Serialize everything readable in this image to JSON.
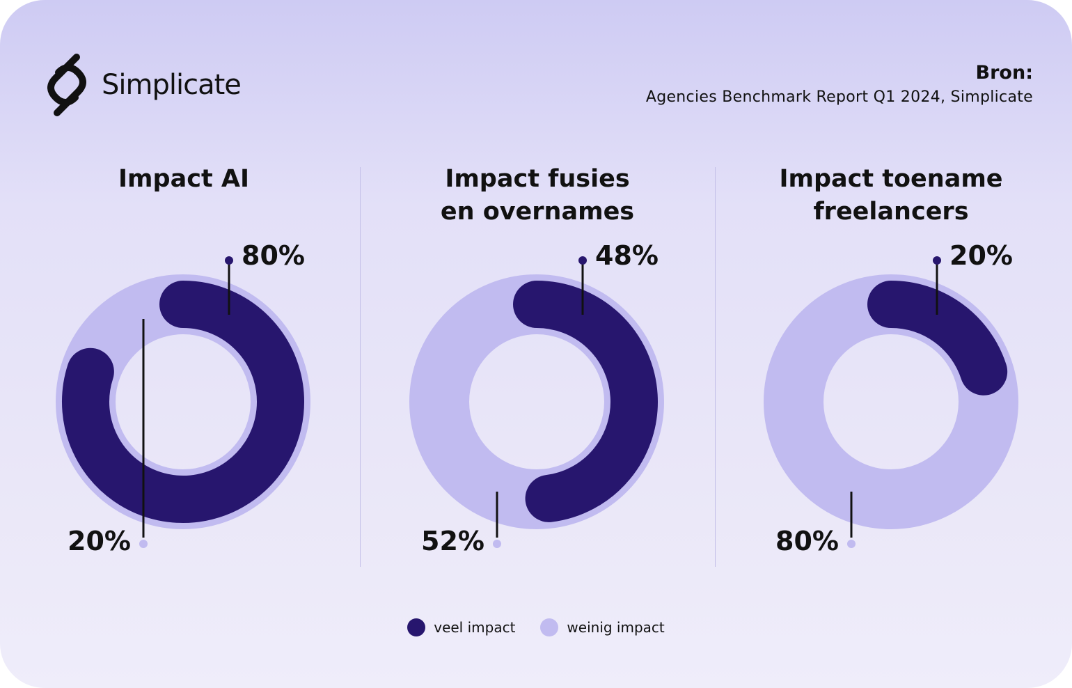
{
  "brand": {
    "name": "Simplicate"
  },
  "source": {
    "label": "Bron:",
    "text": "Agencies Benchmark Report Q1 2024, Simplicate"
  },
  "colors": {
    "veel": "#27166e",
    "weinig": "#c1bbf0"
  },
  "legend": [
    {
      "label": "veel impact",
      "color": "#27166e"
    },
    {
      "label": "weinig impact",
      "color": "#c1bbf0"
    }
  ],
  "chart_data": [
    {
      "type": "donut",
      "title": "Impact AI",
      "categories": [
        "veel impact",
        "weinig impact"
      ],
      "values": [
        80,
        20
      ],
      "labels": [
        "80%",
        "20%"
      ]
    },
    {
      "type": "donut",
      "title": "Impact fusies en overnames",
      "title_lines": [
        "Impact fusies",
        "en overnames"
      ],
      "categories": [
        "veel impact",
        "weinig impact"
      ],
      "values": [
        48,
        52
      ],
      "labels": [
        "48%",
        "52%"
      ]
    },
    {
      "type": "donut",
      "title": "Impact toename freelancers",
      "title_lines": [
        "Impact toename",
        "freelancers"
      ],
      "categories": [
        "veel impact",
        "weinig impact"
      ],
      "values": [
        20,
        80
      ],
      "labels": [
        "20%",
        "80%"
      ]
    }
  ]
}
